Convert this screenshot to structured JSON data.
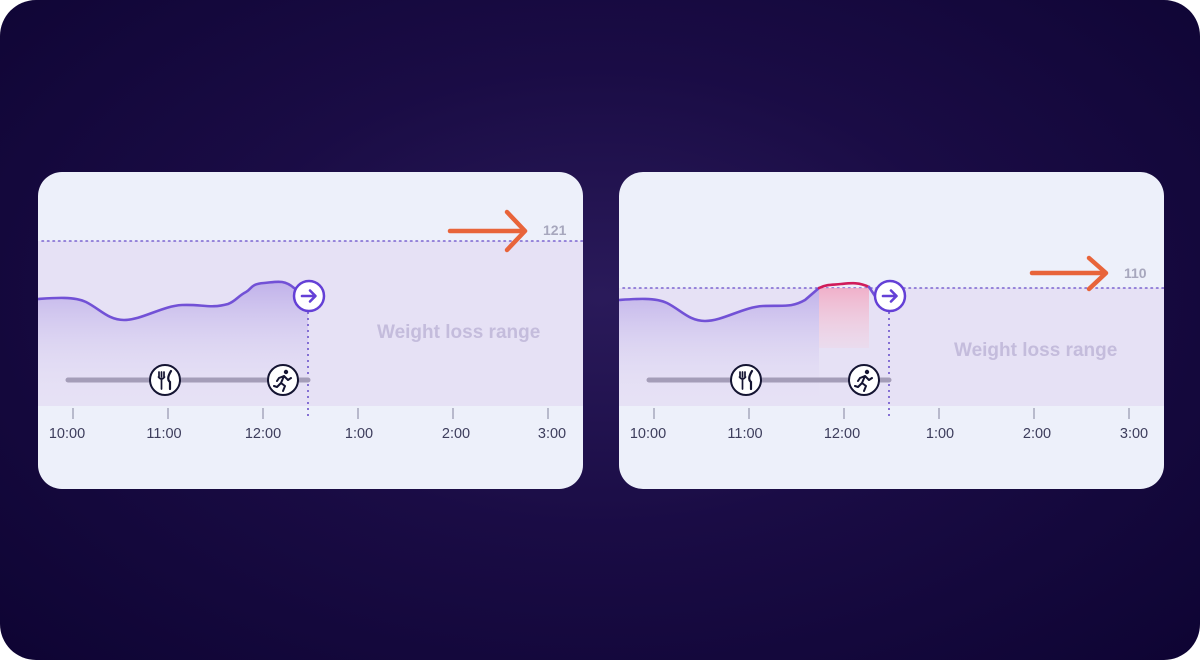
{
  "colors": {
    "background": "#120638",
    "card": "#edf0fa",
    "zone": "#e6e1f5",
    "line": "#7251d6",
    "arrow": "#e8643a",
    "spike": "#d01c5a",
    "timeline": "#a49db8"
  },
  "cards": [
    {
      "zone_label": "Weight loss range",
      "threshold_value": "121",
      "time_labels": [
        "10:00",
        "11:00",
        "12:00",
        "1:00",
        "2:00",
        "3:00"
      ],
      "icons": [
        "utensils-icon",
        "running-icon",
        "arrow-right-icon"
      ]
    },
    {
      "zone_label": "Weight loss range",
      "threshold_value": "110",
      "time_labels": [
        "10:00",
        "11:00",
        "12:00",
        "1:00",
        "2:00",
        "3:00"
      ],
      "icons": [
        "utensils-icon",
        "running-icon",
        "arrow-right-icon"
      ]
    }
  ]
}
